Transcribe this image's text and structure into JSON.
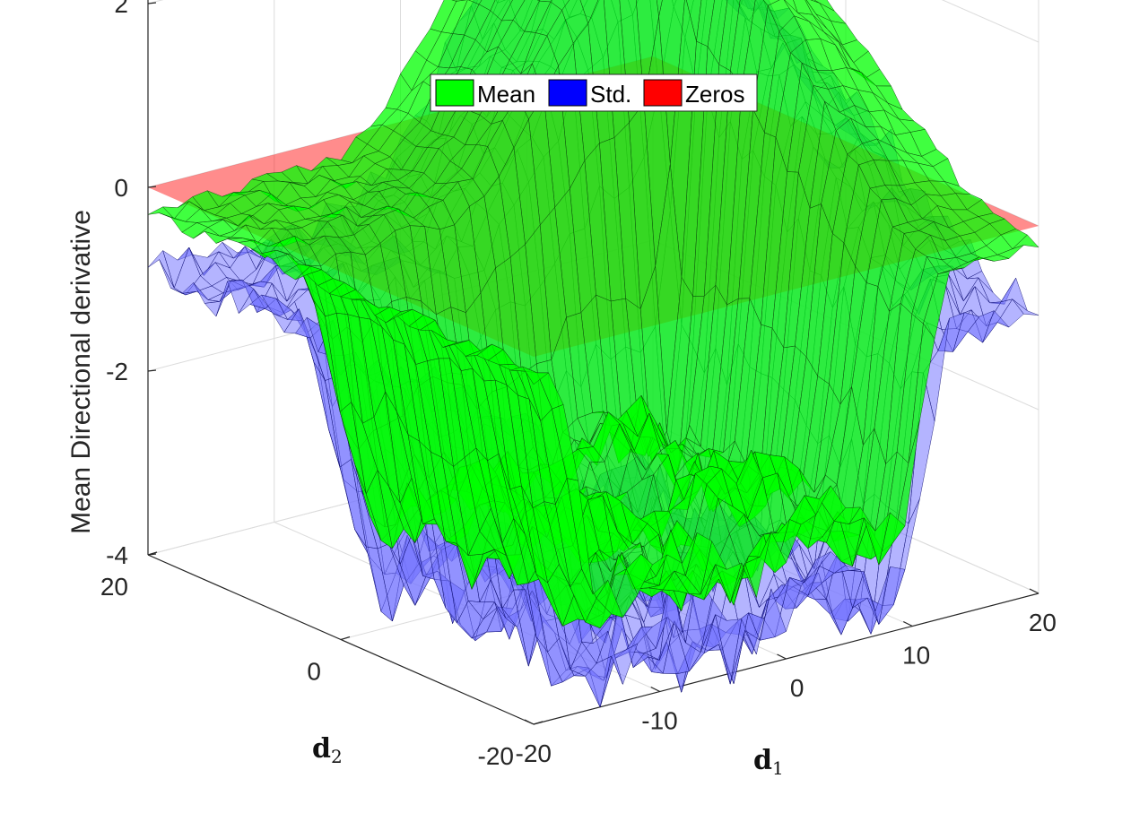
{
  "chart_data": {
    "type": "surface3d",
    "zlabel": "Mean Directional derivative",
    "xlabel": "d",
    "xlabel_sub": "1",
    "ylabel": "d",
    "ylabel_sub": "2",
    "xlim": [
      -20,
      20
    ],
    "ylim": [
      -20,
      20
    ],
    "zlim": [
      -4,
      4
    ],
    "xticks": [
      "-20",
      "-10",
      "0",
      "10",
      "20"
    ],
    "yticks": [
      "-20",
      "0",
      "20"
    ],
    "zticks": [
      "-4",
      "-2",
      "0",
      "2",
      "4"
    ],
    "grid": true,
    "legend_position": "top-center",
    "series": [
      {
        "name": "Mean",
        "color": "#00ff00",
        "description_shape": "plateau ~2 at positive d1, deep trough ~-3 near d1 in [-15,10], d2 in [-20,5]"
      },
      {
        "name": "Std.",
        "color": "#0000ff"
      },
      {
        "name": "Zeros",
        "color": "#ff0000",
        "z_constant": 0
      }
    ]
  }
}
